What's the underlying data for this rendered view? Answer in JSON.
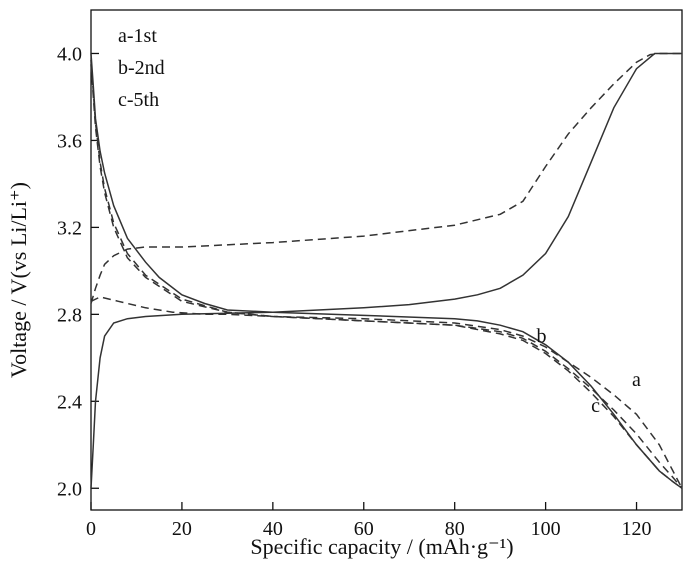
{
  "chart_data": {
    "type": "line",
    "xlabel": "Specific capacity / (mAh·g⁻¹)",
    "ylabel": "Voltage / V(vs Li/Li⁺)",
    "xlim": [
      0,
      130
    ],
    "ylim": [
      1.9,
      4.2
    ],
    "x_ticks": [
      0,
      20,
      40,
      60,
      80,
      100,
      120
    ],
    "y_ticks": [
      2.0,
      2.4,
      2.8,
      3.2,
      3.6,
      4.0
    ],
    "x_tick_labels": [
      "0",
      "20",
      "40",
      "60",
      "80",
      "100",
      "120"
    ],
    "y_tick_labels": [
      "2.0",
      "2.4",
      "2.8",
      "3.2",
      "3.6",
      "4.0"
    ],
    "legend": [
      "a-1st",
      "b-2nd",
      "c-5th"
    ],
    "legend_position": "top-left",
    "grid": false,
    "curve_labels": [
      {
        "text": "b",
        "x": 98,
        "y": 2.67
      },
      {
        "text": "a",
        "x": 119,
        "y": 2.47
      },
      {
        "text": "c",
        "x": 110,
        "y": 2.35
      }
    ],
    "series": [
      {
        "style": "dashed",
        "segment": "charge",
        "x": [
          0,
          1,
          2,
          3,
          5,
          8,
          12,
          20,
          40,
          60,
          80,
          90,
          95,
          100,
          105,
          110,
          115,
          120,
          123,
          125,
          130
        ],
        "y": [
          2.85,
          2.92,
          2.98,
          3.03,
          3.07,
          3.1,
          3.11,
          3.11,
          3.13,
          3.16,
          3.21,
          3.26,
          3.32,
          3.48,
          3.63,
          3.75,
          3.86,
          3.96,
          3.995,
          4.0,
          4.0
        ]
      },
      {
        "style": "solid",
        "segment": "charge",
        "x": [
          0,
          0.5,
          1,
          2,
          3,
          5,
          8,
          12,
          20,
          30,
          40,
          60,
          70,
          80,
          85,
          90,
          95,
          100,
          105,
          110,
          115,
          120,
          124,
          126,
          130
        ],
        "y": [
          2.0,
          2.2,
          2.4,
          2.6,
          2.7,
          2.76,
          2.78,
          2.79,
          2.8,
          2.805,
          2.81,
          2.83,
          2.845,
          2.87,
          2.89,
          2.92,
          2.98,
          3.08,
          3.25,
          3.5,
          3.75,
          3.93,
          4.0,
          4.0,
          4.0
        ]
      },
      {
        "style": "solid",
        "segment": "discharge",
        "x": [
          0,
          0.5,
          1,
          2,
          3,
          5,
          8,
          12,
          15,
          20,
          25,
          30,
          40,
          60,
          80,
          85,
          90,
          95,
          100,
          105,
          110,
          115,
          120,
          125,
          128,
          130
        ],
        "y": [
          4.0,
          3.85,
          3.7,
          3.55,
          3.45,
          3.3,
          3.15,
          3.04,
          2.97,
          2.89,
          2.85,
          2.82,
          2.81,
          2.795,
          2.78,
          2.77,
          2.75,
          2.72,
          2.66,
          2.58,
          2.47,
          2.34,
          2.2,
          2.08,
          2.03,
          2.0
        ]
      },
      {
        "style": "dashed",
        "segment": "discharge",
        "x": [
          0,
          1,
          2,
          3,
          5,
          8,
          12,
          20,
          30,
          40,
          60,
          80,
          90,
          95,
          100,
          105,
          110,
          115,
          120,
          125,
          128,
          130
        ],
        "y": [
          3.97,
          3.68,
          3.5,
          3.38,
          3.22,
          3.08,
          2.98,
          2.87,
          2.81,
          2.79,
          2.77,
          2.75,
          2.72,
          2.69,
          2.63,
          2.55,
          2.46,
          2.36,
          2.25,
          2.12,
          2.05,
          2.0
        ]
      },
      {
        "style": "dashed",
        "segment": "discharge",
        "x": [
          0,
          1,
          2,
          3,
          5,
          8,
          12,
          20,
          30,
          40,
          60,
          80,
          90,
          95,
          100,
          105,
          110,
          115,
          120,
          125,
          128,
          130
        ],
        "y": [
          3.95,
          3.66,
          3.48,
          3.36,
          3.2,
          3.06,
          2.97,
          2.86,
          2.81,
          2.79,
          2.77,
          2.75,
          2.71,
          2.68,
          2.62,
          2.54,
          2.44,
          2.33,
          2.2,
          2.08,
          2.03,
          2.0
        ]
      },
      {
        "style": "dashed",
        "segment": "discharge",
        "x": [
          0,
          2,
          4,
          6,
          8,
          12,
          18,
          25,
          30,
          35,
          40,
          60,
          80,
          90,
          95,
          100,
          105,
          110,
          115,
          120,
          125,
          128,
          130
        ],
        "y": [
          2.86,
          2.88,
          2.87,
          2.86,
          2.85,
          2.83,
          2.81,
          2.8,
          2.8,
          2.795,
          2.79,
          2.78,
          2.76,
          2.73,
          2.7,
          2.65,
          2.58,
          2.51,
          2.43,
          2.34,
          2.2,
          2.08,
          2.0
        ]
      }
    ]
  }
}
